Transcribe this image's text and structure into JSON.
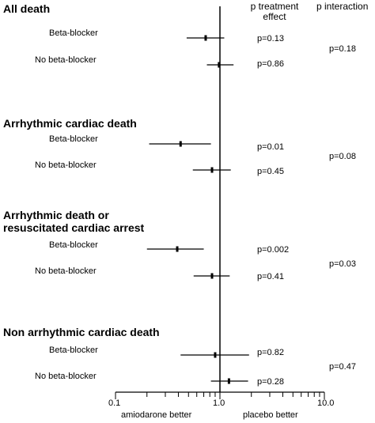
{
  "chart_data": {
    "type": "forest",
    "x_scale": "log",
    "xlim": [
      0.1,
      10.0
    ],
    "reference_line": 1.0,
    "x_ticks": [
      "0.1",
      "1.0",
      "10.0"
    ],
    "x_left_label": "amiodarone better",
    "x_right_label": "placebo better",
    "col_treatment_header": "p treatment effect",
    "col_interaction_header": "p interaction",
    "groups": [
      {
        "title": "All death",
        "p_interaction": "p=0.18",
        "rows": [
          {
            "label": "Beta-blocker",
            "estimate": 0.73,
            "lower": 0.48,
            "upper": 1.1,
            "p_treatment": "p=0.13"
          },
          {
            "label": "No beta-blocker",
            "estimate": 0.98,
            "lower": 0.75,
            "upper": 1.35,
            "p_treatment": "p=0.86"
          }
        ]
      },
      {
        "title": "Arrhythmic cardiac death",
        "p_interaction": "p=0.08",
        "rows": [
          {
            "label": "Beta-blocker",
            "estimate": 0.42,
            "lower": 0.21,
            "upper": 0.82,
            "p_treatment": "p=0.01"
          },
          {
            "label": "No beta-blocker",
            "estimate": 0.84,
            "lower": 0.55,
            "upper": 1.27,
            "p_treatment": "p=0.45"
          }
        ]
      },
      {
        "title": "Arrhythmic death or resuscitated cardiac arrest",
        "title_lines": [
          "Arrhythmic death or",
          "resuscitated cardiac arrest"
        ],
        "p_interaction": "p=0.03",
        "rows": [
          {
            "label": "Beta-blocker",
            "estimate": 0.39,
            "lower": 0.2,
            "upper": 0.7,
            "p_treatment": "p=0.002"
          },
          {
            "label": "No beta-blocker",
            "estimate": 0.84,
            "lower": 0.56,
            "upper": 1.24,
            "p_treatment": "p=0.41"
          }
        ]
      },
      {
        "title": "Non arrhythmic cardiac death",
        "p_interaction": "p=0.47",
        "rows": [
          {
            "label": "Beta-blocker",
            "estimate": 0.9,
            "lower": 0.42,
            "upper": 1.9,
            "p_treatment": "p=0.82"
          },
          {
            "label": "No beta-blocker",
            "estimate": 1.22,
            "lower": 0.82,
            "upper": 1.86,
            "p_treatment": "p=0.28"
          }
        ]
      }
    ]
  }
}
